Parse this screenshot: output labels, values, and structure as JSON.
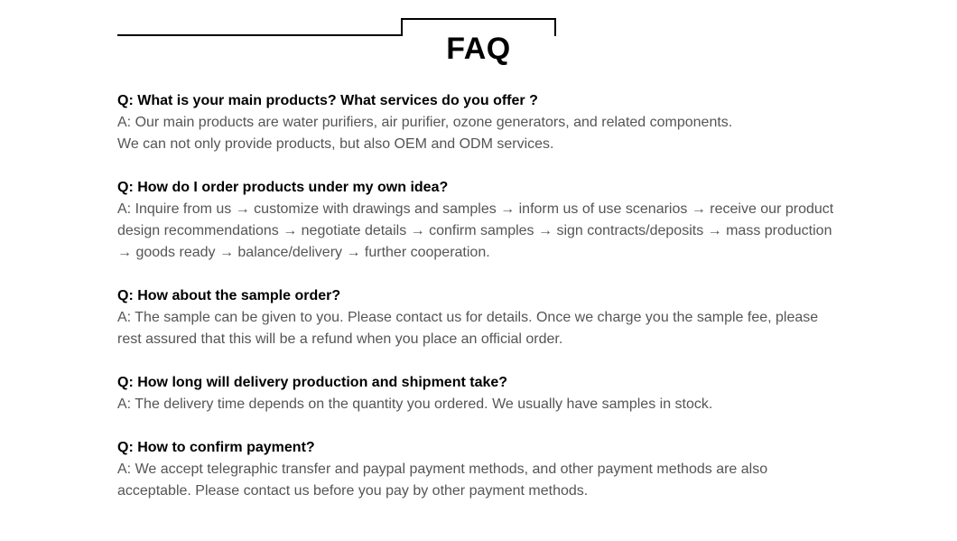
{
  "page": {
    "title": "FAQ",
    "colors": {
      "background": "#ffffff",
      "heading_text": "#000000",
      "question_text": "#000000",
      "answer_text": "#555555",
      "rule_line": "#000000"
    },
    "typography": {
      "title_fontsize": 34,
      "title_weight": 700,
      "question_fontsize": 16,
      "question_weight": 700,
      "answer_fontsize": 16,
      "answer_weight": 400,
      "line_height": 1.5
    }
  },
  "faq": [
    {
      "q": "Q: What is your main products? What services do you offer ?",
      "a": "A: Our main products are water purifiers, air purifier, ozone generators, and related components.\nWe can not only provide products, but also OEM and ODM services."
    },
    {
      "q": "Q: How do I order products under my own idea?",
      "a": "A: Inquire from us → customize with drawings and samples → inform us of use scenarios → receive our product design recommendations → negotiate details → confirm samples → sign contracts/deposits → mass production → goods ready → balance/delivery → further cooperation."
    },
    {
      "q": "Q: How about the sample order?",
      "a": "A: The sample can be given to you. Please contact us for details. Once we charge you the sample fee, please rest assured that this will be a refund when you place an official order."
    },
    {
      "q": "Q: How long will delivery production and shipment take?",
      "a": "A: The delivery time depends on the quantity you ordered. We usually have samples in stock."
    },
    {
      "q": "Q: How to confirm payment?",
      "a": "A: We accept telegraphic transfer and paypal payment methods, and other payment methods are also acceptable. Please contact us before you pay by other payment methods."
    }
  ]
}
